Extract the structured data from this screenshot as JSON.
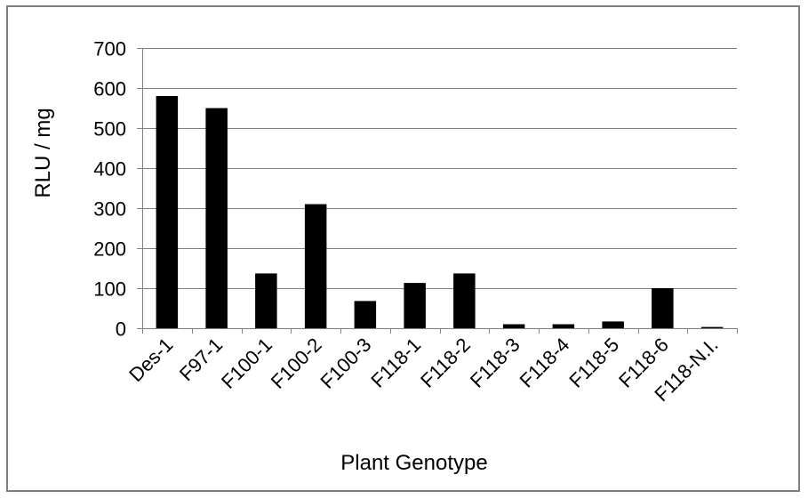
{
  "chart_data": {
    "type": "bar",
    "title": "",
    "xlabel": "Plant Genotype",
    "ylabel": "RLU / mg",
    "categories": [
      "Des-1",
      "F97-1",
      "F100-1",
      "F100-2",
      "F100-3",
      "F118-1",
      "F118-2",
      "F118-3",
      "F118-4",
      "F118-5",
      "F118-6",
      "F118-N.I."
    ],
    "values": [
      580,
      550,
      137,
      310,
      68,
      113,
      137,
      10,
      10,
      17,
      100,
      3
    ],
    "ylim": [
      0,
      700
    ],
    "yticks": [
      "0",
      "100",
      "200",
      "300",
      "400",
      "500",
      "600",
      "700"
    ],
    "grid": true,
    "legend": "none",
    "bar_color": "#000000",
    "grid_color": "#808080"
  }
}
